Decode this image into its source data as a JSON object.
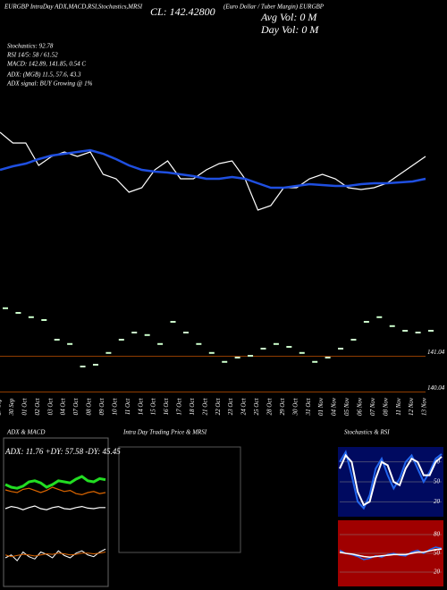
{
  "header": {
    "left": "EURGBP IntraDay ADX,MACD,RSI,Stochastics,MRSI",
    "close": "CL: 142.42800",
    "avg_vol": "Avg Vol: 0 M",
    "day_vol": "Day Vol: 0 M",
    "right": "(Euro Dollar / Tuber Margin) EURGBP",
    "stoch": "Stochastics: 92.78",
    "rsi": "RSI 14/5: 58 / 61.52",
    "macd": "MACD: 142.89, 141.85, 0.54 C",
    "adx": "ADX: (MGB) 11.5, 57.6, 43.3",
    "adx_signal": "ADX signal: BUY Growing @ 1%"
  },
  "main": {
    "type": "line",
    "categories": [
      "27 Sep",
      "30 Sep",
      "01 Oct",
      "02 Oct",
      "03 Oct",
      "04 Oct",
      "07 Oct",
      "08 Oct",
      "09 Oct",
      "10 Oct",
      "11 Oct",
      "14 Oct",
      "15 Oct",
      "16 Oct",
      "17 Oct",
      "18 Oct",
      "21 Oct",
      "22 Oct",
      "23 Oct",
      "24 Oct",
      "25 Oct",
      "28 Oct",
      "29 Oct",
      "30 Oct",
      "31 Oct",
      "01 Nov",
      "04 Nov",
      "05 Nov",
      "06 Nov",
      "07 Nov",
      "08 Nov",
      "11 Nov",
      "12 Nov",
      "13 Nov"
    ],
    "ylim": [
      141.4,
      142.6
    ],
    "series": [
      {
        "color": "#ffffff",
        "values": [
          142.42,
          142.3,
          142.3,
          142.05,
          142.15,
          142.2,
          142.15,
          142.2,
          141.95,
          141.9,
          141.75,
          141.8,
          142.0,
          142.1,
          141.9,
          141.9,
          142.0,
          142.07,
          142.1,
          141.9,
          141.55,
          141.6,
          141.8,
          141.8,
          141.9,
          141.95,
          141.9,
          141.8,
          141.78,
          141.8,
          141.85,
          141.95,
          142.05,
          142.15
        ]
      },
      {
        "color": "#1f4fe0",
        "values": [
          142.0,
          142.04,
          142.07,
          142.12,
          142.16,
          142.18,
          142.2,
          142.22,
          142.18,
          142.12,
          142.05,
          142.0,
          141.98,
          141.97,
          141.95,
          141.93,
          141.9,
          141.9,
          141.92,
          141.9,
          141.85,
          141.8,
          141.8,
          141.82,
          141.84,
          141.83,
          141.82,
          141.82,
          141.84,
          141.85,
          141.85,
          141.86,
          141.87,
          141.9
        ]
      }
    ]
  },
  "candles": {
    "type": "tick",
    "color": "#ccffcc",
    "ylim": [
      140.0,
      142.5
    ],
    "values": [
      142.38,
      142.25,
      142.13,
      142.05,
      141.5,
      141.38,
      140.75,
      140.8,
      141.13,
      141.5,
      141.7,
      141.63,
      141.38,
      142.0,
      141.7,
      141.38,
      141.13,
      140.88,
      141.0,
      141.05,
      141.25,
      141.38,
      141.3,
      141.13,
      140.88,
      141.0,
      141.25,
      141.5,
      142.0,
      142.13,
      141.88,
      141.75,
      141.7,
      141.75
    ],
    "levels": [
      {
        "value": 141.04,
        "label": "141.04"
      },
      {
        "value": 140.04,
        "label": "140.04"
      }
    ],
    "level_color": "#c05000"
  },
  "adx": {
    "title": "ADX & MACD",
    "values_text": "ADX: 11.76 +DY: 57.58 -DY: 45.45",
    "ylim": [
      0,
      100
    ],
    "series": [
      {
        "color": "#22dd22",
        "values": [
          55,
          50,
          48,
          52,
          60,
          62,
          58,
          50,
          55,
          62,
          60,
          58,
          65,
          70,
          62,
          60,
          66,
          64
        ]
      },
      {
        "color": "#dd6600",
        "values": [
          45,
          42,
          40,
          46,
          48,
          44,
          40,
          44,
          50,
          46,
          42,
          44,
          38,
          36,
          40,
          42,
          38,
          40
        ]
      },
      {
        "color": "#ffffff",
        "values": [
          10,
          14,
          12,
          8,
          12,
          15,
          10,
          8,
          12,
          14,
          10,
          9,
          12,
          14,
          11,
          10,
          12,
          12
        ]
      }
    ]
  },
  "macd": {
    "ylim": [
      0,
      100
    ],
    "series": [
      {
        "color": "#ffffff",
        "values": [
          40,
          45,
          35,
          50,
          42,
          38,
          50,
          46,
          40,
          52,
          44,
          40,
          48,
          52,
          45,
          42,
          50,
          55
        ]
      },
      {
        "color": "#dd6600",
        "values": [
          45,
          42,
          44,
          46,
          45,
          43,
          45,
          47,
          46,
          48,
          47,
          45,
          46,
          48,
          48,
          47,
          48,
          50
        ]
      }
    ]
  },
  "intraday": {
    "title": "Intra Day Trading Price & MRSI"
  },
  "stoch": {
    "title": "Stochastics & RSI",
    "ylim": [
      0,
      100
    ],
    "yticks": [
      80,
      50,
      20
    ],
    "series": [
      {
        "color": "#2266ee",
        "values": [
          80,
          95,
          60,
          20,
          10,
          30,
          70,
          85,
          60,
          40,
          55,
          80,
          90,
          70,
          50,
          65,
          85,
          92
        ]
      },
      {
        "color": "#ffffff",
        "values": [
          70,
          90,
          80,
          35,
          15,
          20,
          55,
          80,
          75,
          50,
          45,
          70,
          85,
          80,
          60,
          60,
          80,
          88
        ]
      }
    ]
  },
  "rsi": {
    "ylim": [
      0,
      100
    ],
    "yticks": [
      80,
      50,
      20
    ],
    "series": [
      {
        "color": "#2266ee",
        "values": [
          55,
          50,
          48,
          45,
          40,
          42,
          46,
          44,
          48,
          50,
          47,
          46,
          52,
          55,
          50,
          56,
          60,
          58
        ]
      },
      {
        "color": "#ffffff",
        "values": [
          52,
          50,
          49,
          47,
          45,
          44,
          45,
          46,
          47,
          48,
          48,
          48,
          50,
          52,
          52,
          54,
          56,
          57
        ]
      }
    ]
  }
}
